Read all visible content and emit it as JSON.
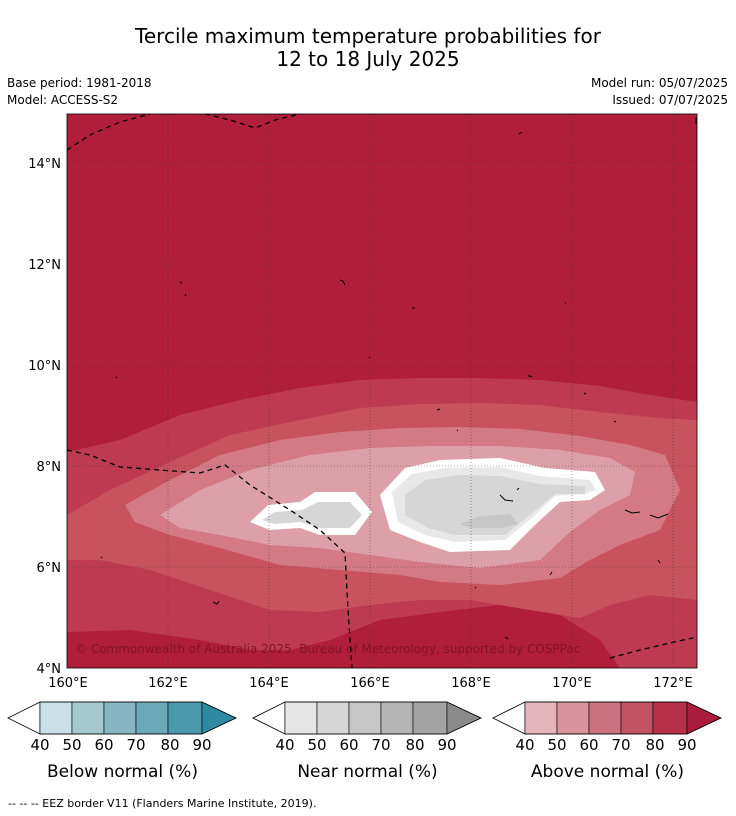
{
  "header": {
    "title_line1": "Tercile maximum temperature probabilities for",
    "title_line2": "12 to 18 July 2025",
    "base_period": "Base period: 1981-2018",
    "model": "Model: ACCESS-S2",
    "model_run": "Model run: 05/07/2025",
    "issued": "Issued: 07/07/2025"
  },
  "map": {
    "lat_labels": [
      "14°N",
      "12°N",
      "10°N",
      "8°N",
      "6°N",
      "4°N"
    ],
    "lon_labels": [
      "160°E",
      "162°E",
      "164°E",
      "166°E",
      "168°E",
      "170°E",
      "172°E"
    ],
    "copyright": "© Commonwealth of Australia 2025, Bureau of Meteorology, supported by COSPPac",
    "colors": {
      "above_90": "#b01e3a",
      "above_80": "#bd3a50",
      "above_70": "#c9525f",
      "above_60": "#d37a85",
      "above_50": "#dea0a8",
      "near_50": "#e8e8e8",
      "near_60": "#d6d6d6",
      "near_70": "#c6c6c6"
    }
  },
  "colorbars": [
    {
      "label": "Below normal (%)",
      "ticks": [
        "40",
        "50",
        "60",
        "70",
        "80",
        "90"
      ],
      "colors": [
        "#c9e0e6",
        "#a6c8cf",
        "#86b6c2",
        "#6aa9b8",
        "#4b98ad",
        "#2e8aa2"
      ]
    },
    {
      "label": "Near normal (%)",
      "ticks": [
        "40",
        "50",
        "60",
        "70",
        "80",
        "90"
      ],
      "colors": [
        "#e6e6e6",
        "#d6d6d6",
        "#c6c6c6",
        "#b5b5b5",
        "#a3a3a3",
        "#8a8a8a"
      ]
    },
    {
      "label": "Above normal (%)",
      "ticks": [
        "40",
        "50",
        "60",
        "70",
        "80",
        "90"
      ],
      "colors": [
        "#e4b5bc",
        "#d8939d",
        "#cc727f",
        "#c25262",
        "#b63048",
        "#ab1b3c"
      ]
    }
  ],
  "footnote": "--  --  -- EEZ border V11 (Flanders Marine Institute, 2019)."
}
